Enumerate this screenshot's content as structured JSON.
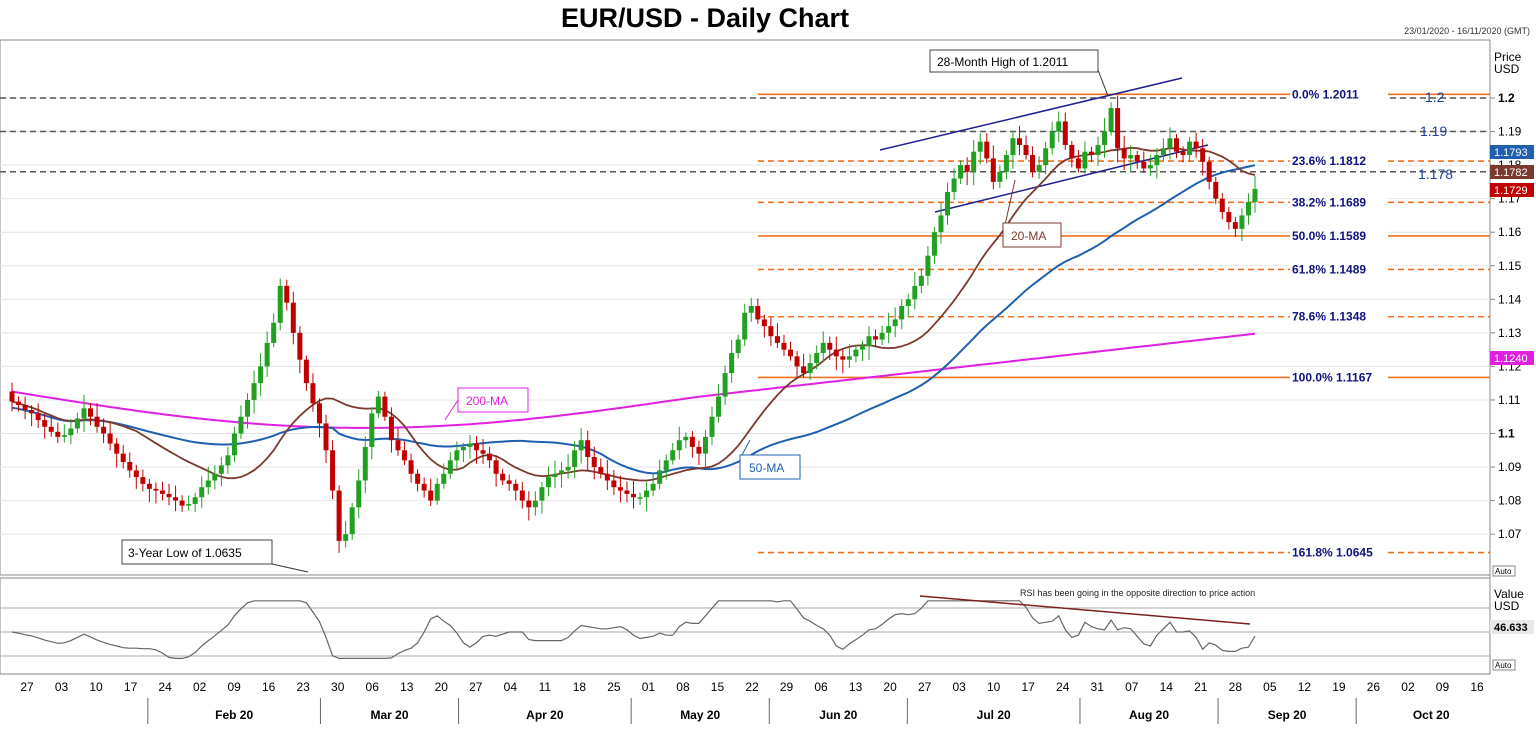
{
  "title": "EUR/USD - Daily Chart",
  "date_range": "23/01/2020 - 16/11/2020 (GMT)",
  "price_axis_label": [
    "Price",
    "USD"
  ],
  "rsi_axis_label": [
    "Value",
    "USD"
  ],
  "auto_label": "Auto",
  "colors": {
    "bull": "#22a022",
    "bear": "#c00000",
    "ma20": "#7b3a30",
    "ma50": "#1f5fb0",
    "ma200": "#e020e0",
    "fib": "#f07020",
    "channel": "#202090",
    "fibtext": "#101080"
  },
  "chart_data": [
    {
      "type": "candlestick",
      "title": "EUR/USD - Daily Chart",
      "ylim": [
        1.063,
        1.208
      ],
      "y_ticks": [
        "1.2",
        "1.19",
        "1.18",
        "1.17",
        "1.16",
        "1.15",
        "1.14",
        "1.13",
        "1.12",
        "1.11",
        "1.1",
        "1.09",
        "1.08",
        "1.07"
      ],
      "y_tick_values": [
        1.2,
        1.19,
        1.18,
        1.17,
        1.16,
        1.15,
        1.14,
        1.13,
        1.12,
        1.11,
        1.1,
        1.09,
        1.08,
        1.07
      ],
      "x_day_ticks": [
        "27",
        "03",
        "10",
        "17",
        "24",
        "02",
        "09",
        "16",
        "23",
        "30",
        "06",
        "13",
        "20",
        "27",
        "04",
        "11",
        "18",
        "25",
        "01",
        "08",
        "15",
        "22",
        "29",
        "06",
        "13",
        "20",
        "27",
        "03",
        "10",
        "17",
        "24",
        "31",
        "07",
        "14",
        "21",
        "28",
        "05",
        "12",
        "19",
        "26",
        "02",
        "09",
        "16"
      ],
      "x_months": [
        "Feb 20",
        "Mar 20",
        "Apr 20",
        "May 20",
        "Jun 20",
        "Jul 20",
        "Aug 20",
        "Sep 20",
        "Oct 20"
      ],
      "ohlc_closes": [
        1.1095,
        1.1085,
        1.107,
        1.106,
        1.104,
        1.102,
        1.1005,
        1.099,
        1.0995,
        1.1015,
        1.1045,
        1.1075,
        1.105,
        1.102,
        1.1,
        1.097,
        1.094,
        1.0915,
        1.089,
        1.087,
        1.085,
        1.0835,
        1.083,
        1.082,
        1.081,
        1.08,
        1.0785,
        1.079,
        1.081,
        1.084,
        1.086,
        1.088,
        1.0905,
        1.0935,
        1.1,
        1.105,
        1.11,
        1.115,
        1.12,
        1.127,
        1.133,
        1.144,
        1.139,
        1.13,
        1.122,
        1.115,
        1.109,
        1.103,
        1.095,
        1.083,
        1.068,
        1.07,
        1.078,
        1.086,
        1.096,
        1.106,
        1.111,
        1.105,
        1.098,
        1.095,
        1.092,
        1.088,
        1.085,
        1.083,
        1.08,
        1.085,
        1.088,
        1.092,
        1.095,
        1.096,
        1.097,
        1.095,
        1.094,
        1.092,
        1.088,
        1.086,
        1.085,
        1.083,
        1.08,
        1.078,
        1.08,
        1.084,
        1.087,
        1.088,
        1.089,
        1.09,
        1.095,
        1.098,
        1.093,
        1.09,
        1.088,
        1.086,
        1.084,
        1.083,
        1.082,
        1.081,
        1.081,
        1.083,
        1.085,
        1.089,
        1.092,
        1.095,
        1.098,
        1.099,
        1.096,
        1.094,
        1.099,
        1.105,
        1.111,
        1.118,
        1.124,
        1.128,
        1.136,
        1.138,
        1.134,
        1.132,
        1.129,
        1.127,
        1.125,
        1.123,
        1.12,
        1.118,
        1.121,
        1.124,
        1.127,
        1.125,
        1.123,
        1.122,
        1.123,
        1.125,
        1.126,
        1.129,
        1.128,
        1.13,
        1.132,
        1.134,
        1.138,
        1.14,
        1.144,
        1.147,
        1.153,
        1.16,
        1.165,
        1.172,
        1.176,
        1.18,
        1.178,
        1.184,
        1.187,
        1.182,
        1.175,
        1.178,
        1.183,
        1.188,
        1.186,
        1.183,
        1.178,
        1.18,
        1.185,
        1.19,
        1.193,
        1.186,
        1.182,
        1.179,
        1.184,
        1.183,
        1.186,
        1.19,
        1.197,
        1.185,
        1.182,
        1.183,
        1.181,
        1.179,
        1.18,
        1.183,
        1.185,
        1.188,
        1.184,
        1.183,
        1.187,
        1.185,
        1.181,
        1.175,
        1.17,
        1.166,
        1.163,
        1.161,
        1.165,
        1.169,
        1.1729
      ]
    },
    {
      "type": "line",
      "series": [
        {
          "name": "20-MA",
          "last": 1.1782
        },
        {
          "name": "50-MA",
          "last": 1.1793
        },
        {
          "name": "200-MA",
          "last": 1.124
        }
      ],
      "price_labels": [
        "1.1793",
        "1.1782",
        "1.1729",
        "1.1240"
      ]
    },
    {
      "type": "fibonacci",
      "levels": [
        {
          "label": "0.0%",
          "value": 1.2011
        },
        {
          "label": "23.6%",
          "value": 1.1812
        },
        {
          "label": "38.2%",
          "value": 1.1689
        },
        {
          "label": "50.0%",
          "value": 1.1589
        },
        {
          "label": "61.8%",
          "value": 1.1489
        },
        {
          "label": "78.6%",
          "value": 1.1348
        },
        {
          "label": "100.0%",
          "value": 1.1167
        },
        {
          "label": "161.8%",
          "value": 1.0645
        }
      ],
      "level_texts": [
        "0.0%   1.2011",
        "23.6%   1.1812",
        "38.2%   1.1689",
        "50.0%   1.1589",
        "61.8%   1.1489",
        "78.6%   1.1348",
        "100.0% 1.1167",
        "161.8% 1.0645"
      ],
      "horizontal_lines": [
        {
          "label": "1.2",
          "value": 1.2
        },
        {
          "label": "1.19",
          "value": 1.19
        },
        {
          "label": "1.178",
          "value": 1.178
        }
      ]
    },
    {
      "type": "line",
      "name": "RSI",
      "last_value": "46.633",
      "value_label": "46.633",
      "annotation": "RSI has been going in the opposite direction to price action"
    }
  ],
  "annotations": {
    "high": "28-Month High of 1.2011",
    "low": "3-Year Low of 1.0635",
    "ma200": "200-MA",
    "ma50": "50-MA",
    "ma20": "20-MA"
  }
}
